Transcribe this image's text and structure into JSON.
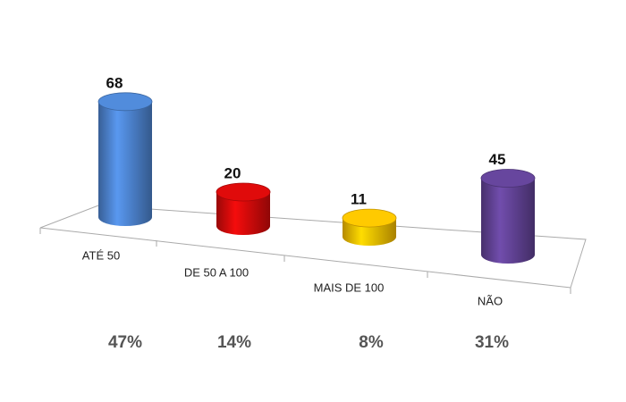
{
  "chart_data": {
    "type": "cylinder",
    "categories": [
      "ATÉ 50",
      "DE 50 A 100",
      "MAIS DE 100",
      "NÃO"
    ],
    "values": [
      68,
      20,
      11,
      45
    ],
    "colors": [
      "#4a7fc8",
      "#cc0a0a",
      "#f2b800",
      "#5e4090"
    ],
    "shares": [
      47,
      14,
      8,
      31
    ],
    "share_labels": [
      "47%",
      "14%",
      "8%",
      "31%"
    ]
  }
}
